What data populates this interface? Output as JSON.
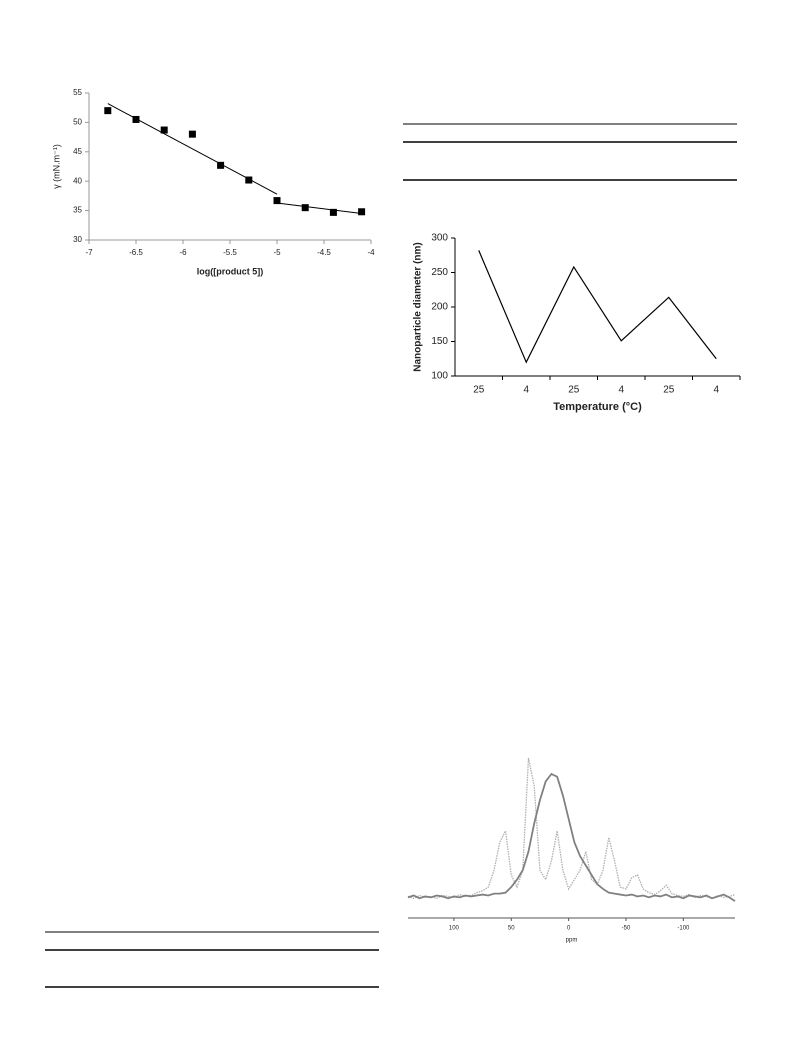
{
  "chart_data": [
    {
      "type": "scatter",
      "xlabel": "log([product 5])",
      "ylabel": "γ (mN.m⁻¹)",
      "x": [
        -6.8,
        -6.5,
        -6.2,
        -5.9,
        -5.6,
        -5.3,
        -5.0,
        -4.7,
        -4.4,
        -4.1
      ],
      "values": [
        52,
        50.5,
        48.7,
        48,
        42.7,
        40.2,
        36.7,
        35.5,
        34.7,
        34.8
      ],
      "color": "#000000",
      "fits": [
        {
          "x": [
            -6.8,
            -5.0
          ],
          "values": [
            53.2,
            37.8
          ]
        },
        {
          "x": [
            -5.0,
            -4.1
          ],
          "values": [
            36.3,
            34.5
          ]
        }
      ],
      "xlim": [
        -7,
        -4
      ],
      "xticks": [
        -7,
        -6.5,
        -6,
        -5.5,
        -5,
        -4.5,
        -4
      ],
      "ylim": [
        30,
        55
      ],
      "yticks": [
        30,
        35,
        40,
        45,
        50,
        55
      ]
    },
    {
      "type": "line",
      "xlabel": "Temperature (°C)",
      "ylabel": "Nanoparticle diameter (nm)",
      "categories": [
        "25",
        "4",
        "25",
        "4",
        "25",
        "4"
      ],
      "values": [
        282,
        120,
        258,
        151,
        214,
        125
      ],
      "color": "#000000",
      "ylim": [
        100,
        300
      ],
      "yticks": [
        100,
        150,
        200,
        250,
        300
      ]
    },
    {
      "type": "spectrum",
      "xlabel": "ppm",
      "x": [
        140,
        135,
        130,
        125,
        120,
        115,
        110,
        105,
        100,
        95,
        90,
        85,
        80,
        75,
        70,
        65,
        60,
        55,
        50,
        45,
        40,
        35,
        30,
        25,
        20,
        15,
        10,
        5,
        0,
        -5,
        -10,
        -15,
        -20,
        -25,
        -30,
        -35,
        -40,
        -45,
        -50,
        -55,
        -60,
        -65,
        -70,
        -75,
        -80,
        -85,
        -90,
        -95,
        -100,
        -105,
        -110,
        -115,
        -120,
        -125,
        -130,
        -135,
        -140,
        -145
      ],
      "series": [
        {
          "color": "#b0b0b0",
          "dashed": true,
          "values": [
            2,
            0,
            3,
            1,
            2,
            0,
            3,
            2,
            1,
            4,
            2,
            3,
            6,
            8,
            12,
            30,
            60,
            72,
            25,
            12,
            30,
            150,
            120,
            30,
            20,
            40,
            72,
            30,
            10,
            20,
            30,
            50,
            20,
            15,
            30,
            65,
            40,
            12,
            10,
            22,
            25,
            10,
            6,
            4,
            8,
            14,
            5,
            3,
            2,
            4,
            1,
            3,
            2,
            0,
            3,
            1,
            2,
            4
          ]
        },
        {
          "color": "#808080",
          "dashed": false,
          "values": [
            1,
            3,
            0,
            2,
            1,
            3,
            2,
            0,
            2,
            1,
            3,
            2,
            3,
            4,
            3,
            5,
            5,
            6,
            12,
            20,
            30,
            50,
            80,
            105,
            125,
            133,
            130,
            110,
            85,
            60,
            45,
            35,
            25,
            15,
            10,
            6,
            5,
            4,
            3,
            4,
            2,
            3,
            1,
            3,
            2,
            4,
            1,
            2,
            0,
            3,
            2,
            1,
            3,
            0,
            2,
            4,
            1,
            -3
          ]
        }
      ],
      "xlim": [
        140,
        -145
      ],
      "xticks": [
        100,
        50,
        0,
        -50,
        -100
      ],
      "ylim": [
        -20,
        180
      ]
    }
  ]
}
